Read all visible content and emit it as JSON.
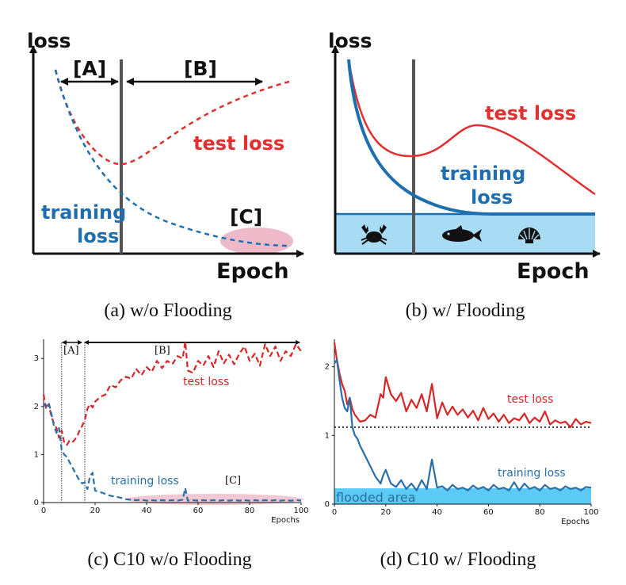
{
  "captions": {
    "a": "(a) w/o Flooding",
    "b": "(b) w/ Flooding",
    "c": "(c) C10 w/o Flooding",
    "d": "(d) C10 w/ Flooding"
  },
  "panel_a": {
    "ylabel": "loss",
    "xlabel": "Epoch",
    "region_a": "[A]",
    "region_b": "[B]",
    "region_c": "[C]",
    "test_label": "test loss",
    "train_label_1": "training",
    "train_label_2": "loss"
  },
  "panel_b": {
    "ylabel": "loss",
    "xlabel": "Epoch",
    "test_label": "test loss",
    "train_label_1": "training",
    "train_label_2": "loss",
    "icons": [
      "crab-icon",
      "fish-icon",
      "shell-icon"
    ]
  },
  "colors": {
    "test": "#e03030",
    "train": "#1f6fb0",
    "flood": "#a8dcf5",
    "flood_bright": "#49c5f2",
    "overfit_zone": "#e8a3b8"
  },
  "chart_data": [
    {
      "type": "line",
      "panel": "c",
      "xlabel": "Epochs",
      "xlim": [
        0,
        100
      ],
      "ylim": [
        0,
        3.4
      ],
      "xticks": [
        "0",
        "20",
        "40",
        "60",
        "80",
        "100"
      ],
      "yticks": [
        "0",
        "1",
        "2",
        "3"
      ],
      "annotations": [
        "[A]",
        "[B]",
        "[C]"
      ],
      "region_boundaries": [
        7,
        16
      ],
      "series": [
        {
          "name": "test loss",
          "x": [
            0,
            1,
            2,
            3,
            4,
            5,
            6,
            7,
            8,
            9,
            10,
            11,
            12,
            13,
            14,
            15,
            16,
            17,
            18,
            19,
            20,
            22,
            24,
            26,
            28,
            30,
            32,
            34,
            36,
            38,
            40,
            42,
            44,
            46,
            48,
            50,
            52,
            54,
            55,
            56,
            58,
            60,
            62,
            64,
            66,
            68,
            70,
            72,
            74,
            76,
            78,
            80,
            82,
            84,
            86,
            88,
            90,
            92,
            94,
            96,
            98,
            100
          ],
          "y": [
            2.25,
            1.95,
            2.05,
            1.8,
            1.65,
            1.55,
            1.35,
            1.5,
            1.25,
            1.2,
            1.28,
            1.25,
            1.3,
            1.38,
            1.5,
            1.6,
            1.72,
            1.95,
            2.05,
            1.98,
            2.1,
            2.2,
            2.25,
            2.45,
            2.4,
            2.55,
            2.62,
            2.58,
            2.78,
            2.65,
            2.82,
            2.72,
            2.95,
            2.8,
            2.95,
            2.88,
            3.05,
            3.0,
            3.35,
            2.75,
            2.7,
            2.95,
            2.85,
            3.05,
            2.82,
            3.15,
            2.9,
            3.08,
            2.88,
            3.1,
            3.25,
            2.95,
            3.1,
            2.85,
            3.3,
            3.05,
            3.25,
            2.95,
            3.15,
            3.05,
            3.3,
            3.15
          ]
        },
        {
          "name": "training loss",
          "x": [
            0,
            1,
            2,
            3,
            4,
            5,
            6,
            7,
            8,
            9,
            10,
            11,
            12,
            13,
            14,
            15,
            16,
            17,
            18,
            19,
            20,
            22,
            24,
            26,
            28,
            30,
            32,
            34,
            36,
            38,
            40,
            42,
            44,
            46,
            48,
            50,
            52,
            54,
            55,
            56,
            58,
            60,
            62,
            64,
            66,
            68,
            70,
            72,
            74,
            76,
            78,
            80,
            82,
            84,
            86,
            88,
            90,
            92,
            94,
            96,
            98,
            100
          ],
          "y": [
            2.05,
            2.0,
            2.08,
            1.85,
            1.6,
            1.45,
            1.55,
            1.1,
            1.0,
            0.95,
            0.85,
            0.75,
            0.65,
            0.55,
            0.45,
            0.4,
            0.42,
            0.28,
            0.55,
            0.62,
            0.25,
            0.22,
            0.18,
            0.14,
            0.12,
            0.1,
            0.07,
            0.06,
            0.05,
            0.06,
            0.04,
            0.05,
            0.04,
            0.05,
            0.04,
            0.05,
            0.04,
            0.06,
            0.3,
            0.04,
            0.05,
            0.04,
            0.05,
            0.04,
            0.05,
            0.04,
            0.05,
            0.04,
            0.05,
            0.04,
            0.05,
            0.04,
            0.05,
            0.04,
            0.05,
            0.04,
            0.05,
            0.04,
            0.05,
            0.04,
            0.05,
            0.04
          ]
        }
      ]
    },
    {
      "type": "line",
      "panel": "d",
      "xlabel": "Epochs",
      "xlim": [
        0,
        100
      ],
      "ylim": [
        0,
        2.4
      ],
      "xticks": [
        "0",
        "20",
        "40",
        "60",
        "80",
        "100"
      ],
      "yticks": [
        "0",
        "1",
        "2"
      ],
      "flood_level": 1.12,
      "flood_label": "flooded area",
      "flood_band": [
        0.0,
        0.23
      ],
      "series": [
        {
          "name": "test loss",
          "x": [
            0,
            1,
            2,
            3,
            4,
            5,
            6,
            7,
            8,
            9,
            10,
            12,
            14,
            16,
            18,
            19,
            20,
            22,
            24,
            26,
            28,
            30,
            32,
            34,
            36,
            38,
            40,
            42,
            44,
            46,
            48,
            50,
            52,
            54,
            56,
            58,
            60,
            62,
            64,
            66,
            68,
            70,
            72,
            74,
            76,
            78,
            80,
            82,
            84,
            86,
            88,
            90,
            92,
            94,
            96,
            98,
            100
          ],
          "y": [
            2.35,
            2.1,
            1.9,
            1.75,
            1.65,
            1.45,
            1.55,
            1.38,
            1.3,
            1.25,
            1.2,
            1.22,
            1.3,
            1.26,
            1.6,
            1.55,
            1.85,
            1.6,
            1.5,
            1.62,
            1.35,
            1.52,
            1.4,
            1.6,
            1.35,
            1.75,
            1.25,
            1.48,
            1.3,
            1.42,
            1.3,
            1.38,
            1.26,
            1.36,
            1.22,
            1.4,
            1.24,
            1.32,
            1.2,
            1.3,
            1.18,
            1.25,
            1.22,
            1.32,
            1.18,
            1.26,
            1.2,
            1.35,
            1.16,
            1.22,
            1.18,
            1.2,
            1.12,
            1.24,
            1.16,
            1.2,
            1.18
          ]
        },
        {
          "name": "training loss",
          "x": [
            0,
            1,
            2,
            3,
            4,
            5,
            6,
            7,
            8,
            9,
            10,
            12,
            14,
            16,
            18,
            19,
            20,
            22,
            24,
            26,
            28,
            30,
            32,
            34,
            36,
            38,
            40,
            42,
            44,
            46,
            48,
            50,
            52,
            54,
            56,
            58,
            60,
            62,
            64,
            66,
            68,
            70,
            72,
            74,
            76,
            78,
            80,
            82,
            84,
            86,
            88,
            90,
            92,
            94,
            96,
            98,
            100
          ],
          "y": [
            2.05,
            2.1,
            1.8,
            1.55,
            1.4,
            1.35,
            1.55,
            1.12,
            1.0,
            0.95,
            0.85,
            0.7,
            0.55,
            0.4,
            0.3,
            0.42,
            0.5,
            0.3,
            0.25,
            0.35,
            0.22,
            0.3,
            0.2,
            0.35,
            0.22,
            0.65,
            0.24,
            0.26,
            0.2,
            0.28,
            0.22,
            0.24,
            0.2,
            0.27,
            0.22,
            0.25,
            0.2,
            0.28,
            0.22,
            0.24,
            0.2,
            0.32,
            0.2,
            0.3,
            0.22,
            0.25,
            0.2,
            0.28,
            0.22,
            0.24,
            0.2,
            0.26,
            0.22,
            0.24,
            0.2,
            0.25,
            0.24
          ]
        }
      ]
    }
  ]
}
